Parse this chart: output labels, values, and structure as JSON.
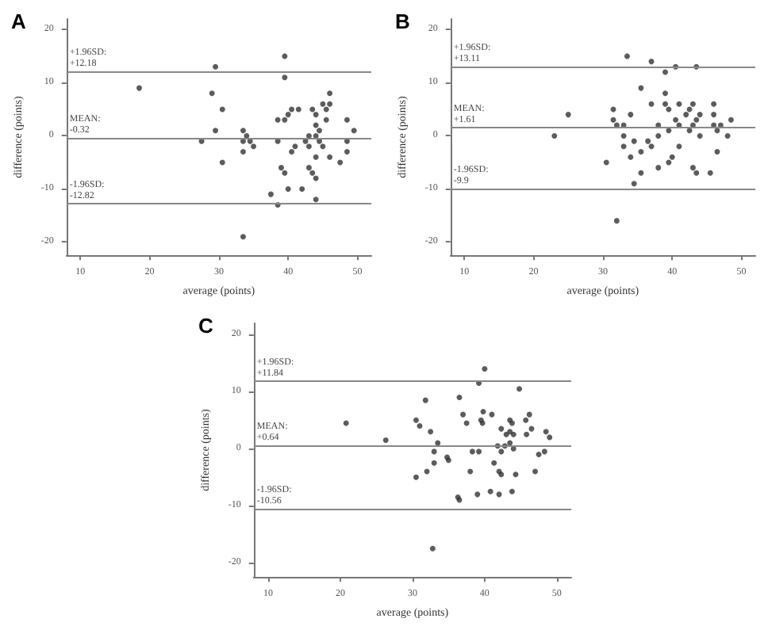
{
  "chart_data": [
    {
      "type": "scatter",
      "title": "A",
      "xlabel": "average (points)",
      "ylabel": "difference (points)",
      "xlim": [
        8,
        52
      ],
      "ylim": [
        -22.5,
        22
      ],
      "xticks": [
        10,
        20,
        30,
        40,
        50
      ],
      "yticks": [
        -20,
        -10,
        0,
        10,
        20
      ],
      "grid": false,
      "marker": "circle",
      "series": [
        {
          "color": "#333333",
          "x": [
            18.5,
            29.5,
            29,
            29.5,
            30.5,
            30.5,
            27.5,
            33.5,
            34,
            33.5,
            34.5,
            35,
            33.5,
            33.5,
            37.5,
            38.5,
            38.5,
            38.5,
            39,
            39.5,
            39.5,
            39.5,
            39.5,
            40,
            40.5,
            40,
            40.5,
            41,
            41.5,
            42,
            42.5,
            43,
            43,
            43,
            43.5,
            43.5,
            44,
            44,
            44,
            44,
            44,
            44,
            44.5,
            44.5,
            45,
            45,
            45.5,
            45.5,
            46,
            46,
            46,
            47.5,
            48.5,
            48.5,
            48.5,
            49.5
          ],
          "values": [
            9,
            13,
            8,
            1,
            5,
            -5,
            -1,
            1,
            0,
            -1,
            -1,
            -2,
            -3,
            -19,
            -11,
            -13,
            3,
            -1,
            -6,
            -7,
            15,
            11,
            3,
            4,
            5,
            -10,
            -3,
            -2,
            5,
            -10,
            -1,
            0,
            -2,
            -6,
            -7,
            5,
            4,
            2,
            0,
            -4,
            -8,
            -12,
            1,
            -1,
            6,
            -2,
            5,
            3,
            8,
            6,
            -4,
            -5,
            3,
            -1,
            -3,
            1
          ]
        }
      ],
      "ref_lines": [
        {
          "axis": "y",
          "value": 12.18,
          "label": "+1.96SD:\n+12.18",
          "color": "#888888",
          "line_style": "solid"
        },
        {
          "axis": "y",
          "value": -0.32,
          "label": "MEAN:\n-0.32",
          "color": "#888888",
          "line_style": "solid"
        },
        {
          "axis": "y",
          "value": -12.82,
          "label": "-1.96SD:\n-12.82",
          "color": "#888888",
          "line_style": "solid"
        }
      ]
    },
    {
      "type": "scatter",
      "title": "B",
      "xlabel": "average (points)",
      "ylabel": "difference (points)",
      "xlim": [
        8,
        52
      ],
      "ylim": [
        -22.5,
        22
      ],
      "xticks": [
        10,
        20,
        30,
        40,
        50
      ],
      "yticks": [
        -20,
        -10,
        0,
        10,
        20
      ],
      "grid": false,
      "marker": "circle",
      "series": [
        {
          "color": "#333333",
          "x": [
            23,
            25,
            30.5,
            31.5,
            31.5,
            32,
            32,
            33,
            33,
            33,
            33.5,
            34,
            34,
            34.5,
            34.5,
            35.5,
            35.5,
            35.5,
            36.5,
            37,
            37,
            37,
            38,
            38,
            38,
            39,
            39,
            39,
            39.5,
            39.5,
            39.5,
            40,
            40.5,
            40.5,
            41,
            41,
            41,
            42,
            42.5,
            42.5,
            43,
            43,
            43,
            43.5,
            43.5,
            43.5,
            44,
            44,
            45.5,
            46,
            46,
            46,
            46.5,
            46.5,
            47,
            48,
            48.5
          ],
          "values": [
            0,
            4,
            -5,
            5,
            3,
            2,
            -16,
            2,
            0,
            -2,
            15,
            4,
            -4,
            -1,
            -9,
            9,
            -3,
            -7,
            -1,
            -2,
            6,
            14,
            2,
            0,
            -6,
            12,
            8,
            6,
            5,
            1,
            -5,
            -4,
            13,
            3,
            6,
            2,
            -2,
            4,
            5,
            1,
            6,
            2,
            -6,
            13,
            3,
            -7,
            4,
            0,
            -7,
            6,
            4,
            2,
            1,
            -3,
            2,
            0,
            3
          ]
        }
      ],
      "ref_lines": [
        {
          "axis": "y",
          "value": 13.11,
          "label": "+1.96SD:\n+13.11",
          "color": "#888888",
          "line_style": "solid"
        },
        {
          "axis": "y",
          "value": 1.61,
          "label": "MEAN:\n+1.61",
          "color": "#888888",
          "line_style": "solid"
        },
        {
          "axis": "y",
          "value": -9.9,
          "label": "-1.96SD:\n-9.9",
          "color": "#888888",
          "line_style": "solid"
        }
      ]
    },
    {
      "type": "scatter",
      "title": "C",
      "xlabel": "average (points)",
      "ylabel": "difference (points)",
      "xlim": [
        8,
        52
      ],
      "ylim": [
        -22.5,
        22
      ],
      "xticks": [
        10,
        20,
        30,
        40,
        50
      ],
      "yticks": [
        -20,
        -10,
        0,
        10,
        20
      ],
      "grid": false,
      "marker": "circle",
      "series": [
        {
          "color": "#333333",
          "x": [
            20.8,
            26.3,
            30.5,
            31,
            30.5,
            31.8,
            32,
            32.5,
            33,
            33,
            33.5,
            32.8,
            34.8,
            35,
            36.3,
            36.5,
            36.5,
            37,
            37.5,
            38,
            38.3,
            39,
            39.2,
            39.2,
            39.5,
            39.7,
            39.8,
            40,
            40.8,
            41,
            41.3,
            41.8,
            42,
            42,
            42.3,
            42.3,
            42.3,
            42.8,
            43,
            43.5,
            43.5,
            43.5,
            43.8,
            43.8,
            44,
            44,
            44.3,
            44.8,
            45.7,
            45.8,
            46.2,
            46.5,
            47,
            47.5,
            48.3,
            48.5,
            49
          ],
          "values": [
            4.5,
            1.5,
            5,
            4,
            -5,
            8.5,
            -4,
            3,
            -0.5,
            -2.5,
            1,
            -17.5,
            -1.5,
            -2,
            -8.5,
            -9,
            9,
            6,
            4.5,
            -4,
            -0.5,
            -8,
            11.5,
            -0.5,
            5,
            4.5,
            6.5,
            14,
            -7.5,
            6,
            -2.5,
            0.5,
            -4,
            -8,
            3.5,
            -0.5,
            -4.5,
            0.5,
            2.5,
            5,
            3,
            1,
            4.5,
            -7.5,
            2.5,
            0,
            -4.5,
            10.5,
            5,
            2.5,
            6,
            3.5,
            -4,
            -1,
            -0.5,
            3,
            2
          ]
        }
      ],
      "ref_lines": [
        {
          "axis": "y",
          "value": 11.84,
          "label": "+1.96SD:\n+11.84",
          "color": "#888888",
          "line_style": "solid"
        },
        {
          "axis": "y",
          "value": 0.64,
          "label": "MEAN:\n+0.64",
          "color": "#888888",
          "line_style": "solid"
        },
        {
          "axis": "y",
          "value": -10.56,
          "label": "-1.96SD:\n-10.56",
          "color": "#888888",
          "line_style": "solid"
        }
      ]
    }
  ]
}
